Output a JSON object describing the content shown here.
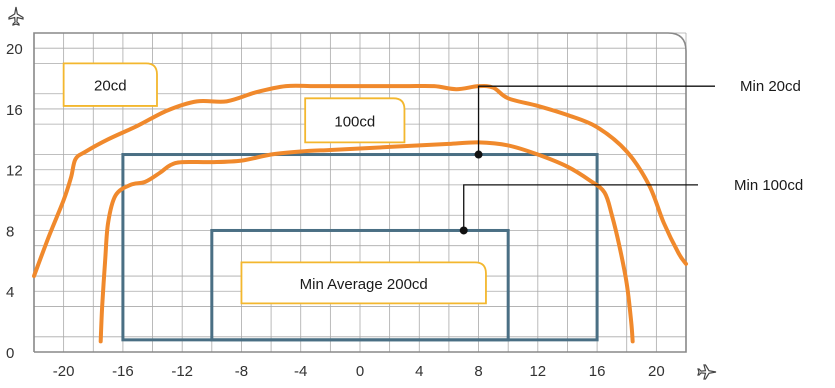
{
  "chart_data": {
    "type": "line",
    "x_ticks": [
      "-20",
      "-16",
      "-12",
      "-8",
      "-4",
      "0",
      "4",
      "8",
      "12",
      "16",
      "20"
    ],
    "y_ticks": [
      "0",
      "4",
      "8",
      "12",
      "16",
      "20"
    ],
    "xlim": [
      -22,
      22
    ],
    "ylim": [
      0,
      21
    ],
    "grid": true,
    "x_axis_icon": "airplane-icon",
    "y_axis_icon": "airplane-icon",
    "colors": {
      "contour": "#f0892c",
      "rect": "#4a6f84",
      "label_border": "#f3b72e",
      "grid": "#aaaaaa",
      "frame": "#888888"
    },
    "contours": [
      {
        "label": "20cd",
        "points": [
          [
            -22,
            5
          ],
          [
            -21,
            7.6
          ],
          [
            -20,
            10
          ],
          [
            -19.5,
            11.5
          ],
          [
            -19.2,
            12.7
          ],
          [
            -18.5,
            13.2
          ],
          [
            -17,
            14
          ],
          [
            -15,
            14.9
          ],
          [
            -13,
            15.9
          ],
          [
            -11,
            16.5
          ],
          [
            -9,
            16.5
          ],
          [
            -7,
            17.1
          ],
          [
            -5,
            17.5
          ],
          [
            -3,
            17.5
          ],
          [
            0,
            17.5
          ],
          [
            3,
            17.5
          ],
          [
            5,
            17.5
          ],
          [
            6.5,
            17.3
          ],
          [
            8,
            17.5
          ],
          [
            9,
            17.4
          ],
          [
            10,
            16.7
          ],
          [
            12,
            16.2
          ],
          [
            14,
            15.6
          ],
          [
            16,
            14.8
          ],
          [
            18,
            13.2
          ],
          [
            19.5,
            11
          ],
          [
            20.5,
            8.5
          ],
          [
            21.5,
            6.5
          ],
          [
            22,
            5.8
          ]
        ]
      },
      {
        "label": "100cd",
        "points": [
          [
            -17.5,
            0.7
          ],
          [
            -17.4,
            3
          ],
          [
            -17.2,
            6
          ],
          [
            -17,
            8.5
          ],
          [
            -16.5,
            10.3
          ],
          [
            -15.5,
            11
          ],
          [
            -14.5,
            11.2
          ],
          [
            -13.5,
            11.8
          ],
          [
            -12.8,
            12.3
          ],
          [
            -12,
            12.5
          ],
          [
            -10,
            12.5
          ],
          [
            -8,
            12.6
          ],
          [
            -6,
            13
          ],
          [
            -4,
            13.2
          ],
          [
            -2,
            13.3
          ],
          [
            0,
            13.4
          ],
          [
            2,
            13.5
          ],
          [
            4,
            13.6
          ],
          [
            6,
            13.7
          ],
          [
            8,
            13.8
          ],
          [
            10,
            13.6
          ],
          [
            12,
            13
          ],
          [
            14,
            12.2
          ],
          [
            15.5,
            11.3
          ],
          [
            16.5,
            10.5
          ],
          [
            17,
            9
          ],
          [
            17.5,
            7
          ],
          [
            18,
            4.5
          ],
          [
            18.3,
            2
          ],
          [
            18.4,
            0.7
          ]
        ]
      }
    ],
    "rectangles": [
      {
        "name": "outer",
        "x": [
          -16,
          16
        ],
        "y": [
          0.8,
          13
        ]
      },
      {
        "name": "inner",
        "x": [
          -10,
          10
        ],
        "y": [
          0.8,
          8
        ]
      }
    ],
    "label_boxes": [
      {
        "text": "20cd",
        "x": [
          -20,
          -13.7
        ],
        "y": [
          16.2,
          19
        ]
      },
      {
        "text": "100cd",
        "x": [
          -3.7,
          3
        ],
        "y": [
          13.8,
          16.7
        ]
      },
      {
        "text": "Min Average  200cd",
        "x": [
          -8,
          8.5
        ],
        "y": [
          3.2,
          5.9
        ]
      }
    ],
    "annotations": [
      {
        "text": "Min 20cd",
        "point": [
          8,
          13
        ],
        "corner_y": 17.5
      },
      {
        "text": "Min 100cd",
        "point": [
          7,
          8
        ],
        "corner_y": 11
      }
    ]
  }
}
